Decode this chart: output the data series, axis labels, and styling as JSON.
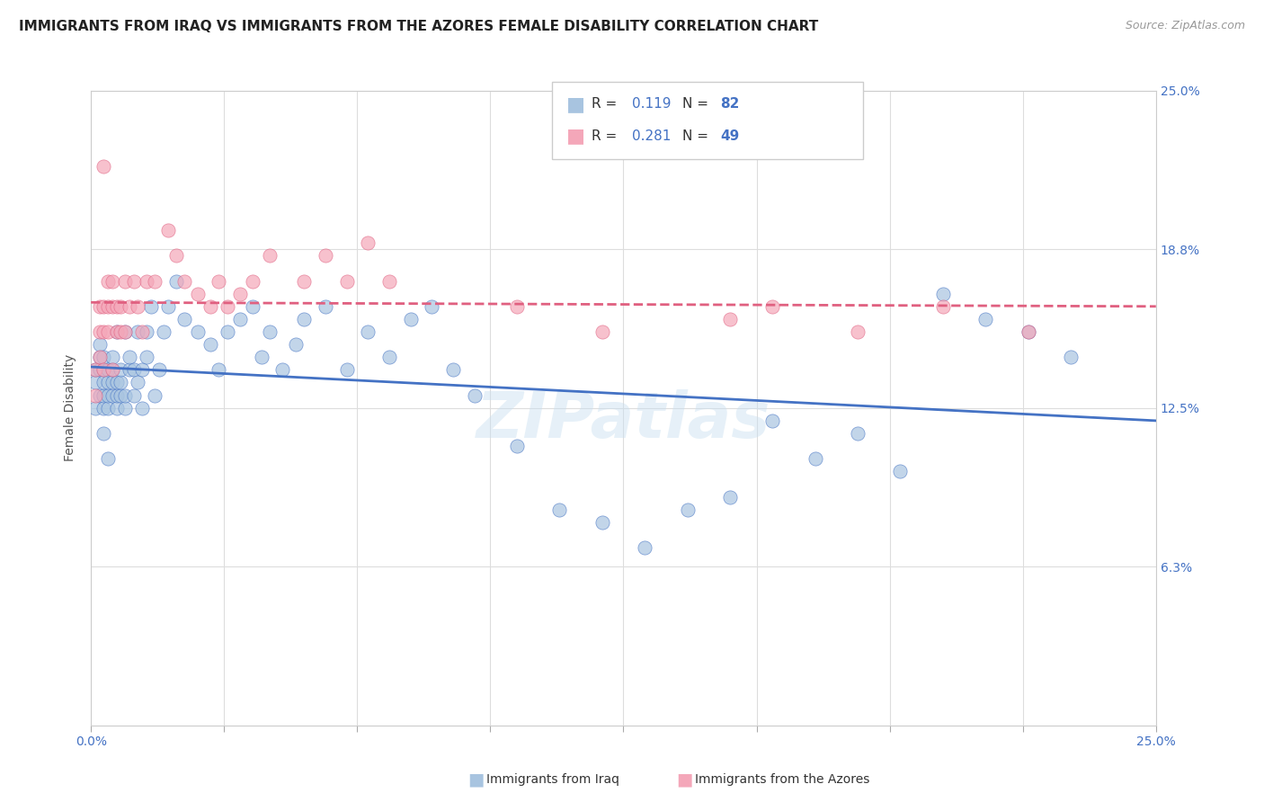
{
  "title": "IMMIGRANTS FROM IRAQ VS IMMIGRANTS FROM THE AZORES FEMALE DISABILITY CORRELATION CHART",
  "source": "Source: ZipAtlas.com",
  "ylabel": "Female Disability",
  "bottom_legend_iraq": "Immigrants from Iraq",
  "bottom_legend_azores": "Immigrants from the Azores",
  "iraq_color": "#a8c4e0",
  "azores_color": "#f4a7b9",
  "iraq_line_color": "#4472c4",
  "azores_line_color": "#e06080",
  "watermark": "ZIPatlas",
  "xlim": [
    0.0,
    0.25
  ],
  "ylim": [
    0.0,
    0.25
  ],
  "iraq_R": 0.119,
  "azores_R": 0.281,
  "iraq_N": 82,
  "azores_N": 49,
  "background_color": "#ffffff",
  "grid_color": "#dddddd",
  "iraq_scatter_x": [
    0.001,
    0.001,
    0.001,
    0.002,
    0.002,
    0.002,
    0.002,
    0.003,
    0.003,
    0.003,
    0.003,
    0.003,
    0.004,
    0.004,
    0.004,
    0.004,
    0.005,
    0.005,
    0.005,
    0.005,
    0.006,
    0.006,
    0.006,
    0.006,
    0.007,
    0.007,
    0.007,
    0.008,
    0.008,
    0.008,
    0.009,
    0.009,
    0.01,
    0.01,
    0.011,
    0.011,
    0.012,
    0.012,
    0.013,
    0.013,
    0.014,
    0.015,
    0.016,
    0.017,
    0.018,
    0.02,
    0.022,
    0.025,
    0.028,
    0.03,
    0.032,
    0.035,
    0.038,
    0.04,
    0.042,
    0.045,
    0.048,
    0.05,
    0.055,
    0.06,
    0.065,
    0.07,
    0.075,
    0.08,
    0.085,
    0.09,
    0.1,
    0.11,
    0.12,
    0.13,
    0.14,
    0.15,
    0.16,
    0.17,
    0.18,
    0.19,
    0.2,
    0.21,
    0.22,
    0.23,
    0.003,
    0.004
  ],
  "iraq_scatter_y": [
    0.135,
    0.125,
    0.14,
    0.13,
    0.14,
    0.145,
    0.15,
    0.125,
    0.13,
    0.135,
    0.14,
    0.145,
    0.125,
    0.13,
    0.135,
    0.14,
    0.13,
    0.135,
    0.14,
    0.145,
    0.125,
    0.13,
    0.135,
    0.155,
    0.13,
    0.135,
    0.14,
    0.125,
    0.13,
    0.155,
    0.14,
    0.145,
    0.13,
    0.14,
    0.135,
    0.155,
    0.125,
    0.14,
    0.145,
    0.155,
    0.165,
    0.13,
    0.14,
    0.155,
    0.165,
    0.175,
    0.16,
    0.155,
    0.15,
    0.14,
    0.155,
    0.16,
    0.165,
    0.145,
    0.155,
    0.14,
    0.15,
    0.16,
    0.165,
    0.14,
    0.155,
    0.145,
    0.16,
    0.165,
    0.14,
    0.13,
    0.11,
    0.085,
    0.08,
    0.07,
    0.085,
    0.09,
    0.12,
    0.105,
    0.115,
    0.1,
    0.17,
    0.16,
    0.155,
    0.145,
    0.115,
    0.105
  ],
  "azores_scatter_x": [
    0.001,
    0.001,
    0.002,
    0.002,
    0.002,
    0.003,
    0.003,
    0.003,
    0.004,
    0.004,
    0.004,
    0.005,
    0.005,
    0.005,
    0.006,
    0.006,
    0.007,
    0.007,
    0.008,
    0.008,
    0.009,
    0.01,
    0.011,
    0.012,
    0.013,
    0.015,
    0.018,
    0.02,
    0.022,
    0.025,
    0.028,
    0.03,
    0.032,
    0.035,
    0.038,
    0.042,
    0.05,
    0.055,
    0.06,
    0.065,
    0.07,
    0.1,
    0.12,
    0.15,
    0.16,
    0.18,
    0.2,
    0.22,
    0.003
  ],
  "azores_scatter_y": [
    0.14,
    0.13,
    0.155,
    0.145,
    0.165,
    0.155,
    0.14,
    0.165,
    0.155,
    0.165,
    0.175,
    0.14,
    0.165,
    0.175,
    0.155,
    0.165,
    0.155,
    0.165,
    0.155,
    0.175,
    0.165,
    0.175,
    0.165,
    0.155,
    0.175,
    0.175,
    0.195,
    0.185,
    0.175,
    0.17,
    0.165,
    0.175,
    0.165,
    0.17,
    0.175,
    0.185,
    0.175,
    0.185,
    0.175,
    0.19,
    0.175,
    0.165,
    0.155,
    0.16,
    0.165,
    0.155,
    0.165,
    0.155,
    0.22
  ]
}
